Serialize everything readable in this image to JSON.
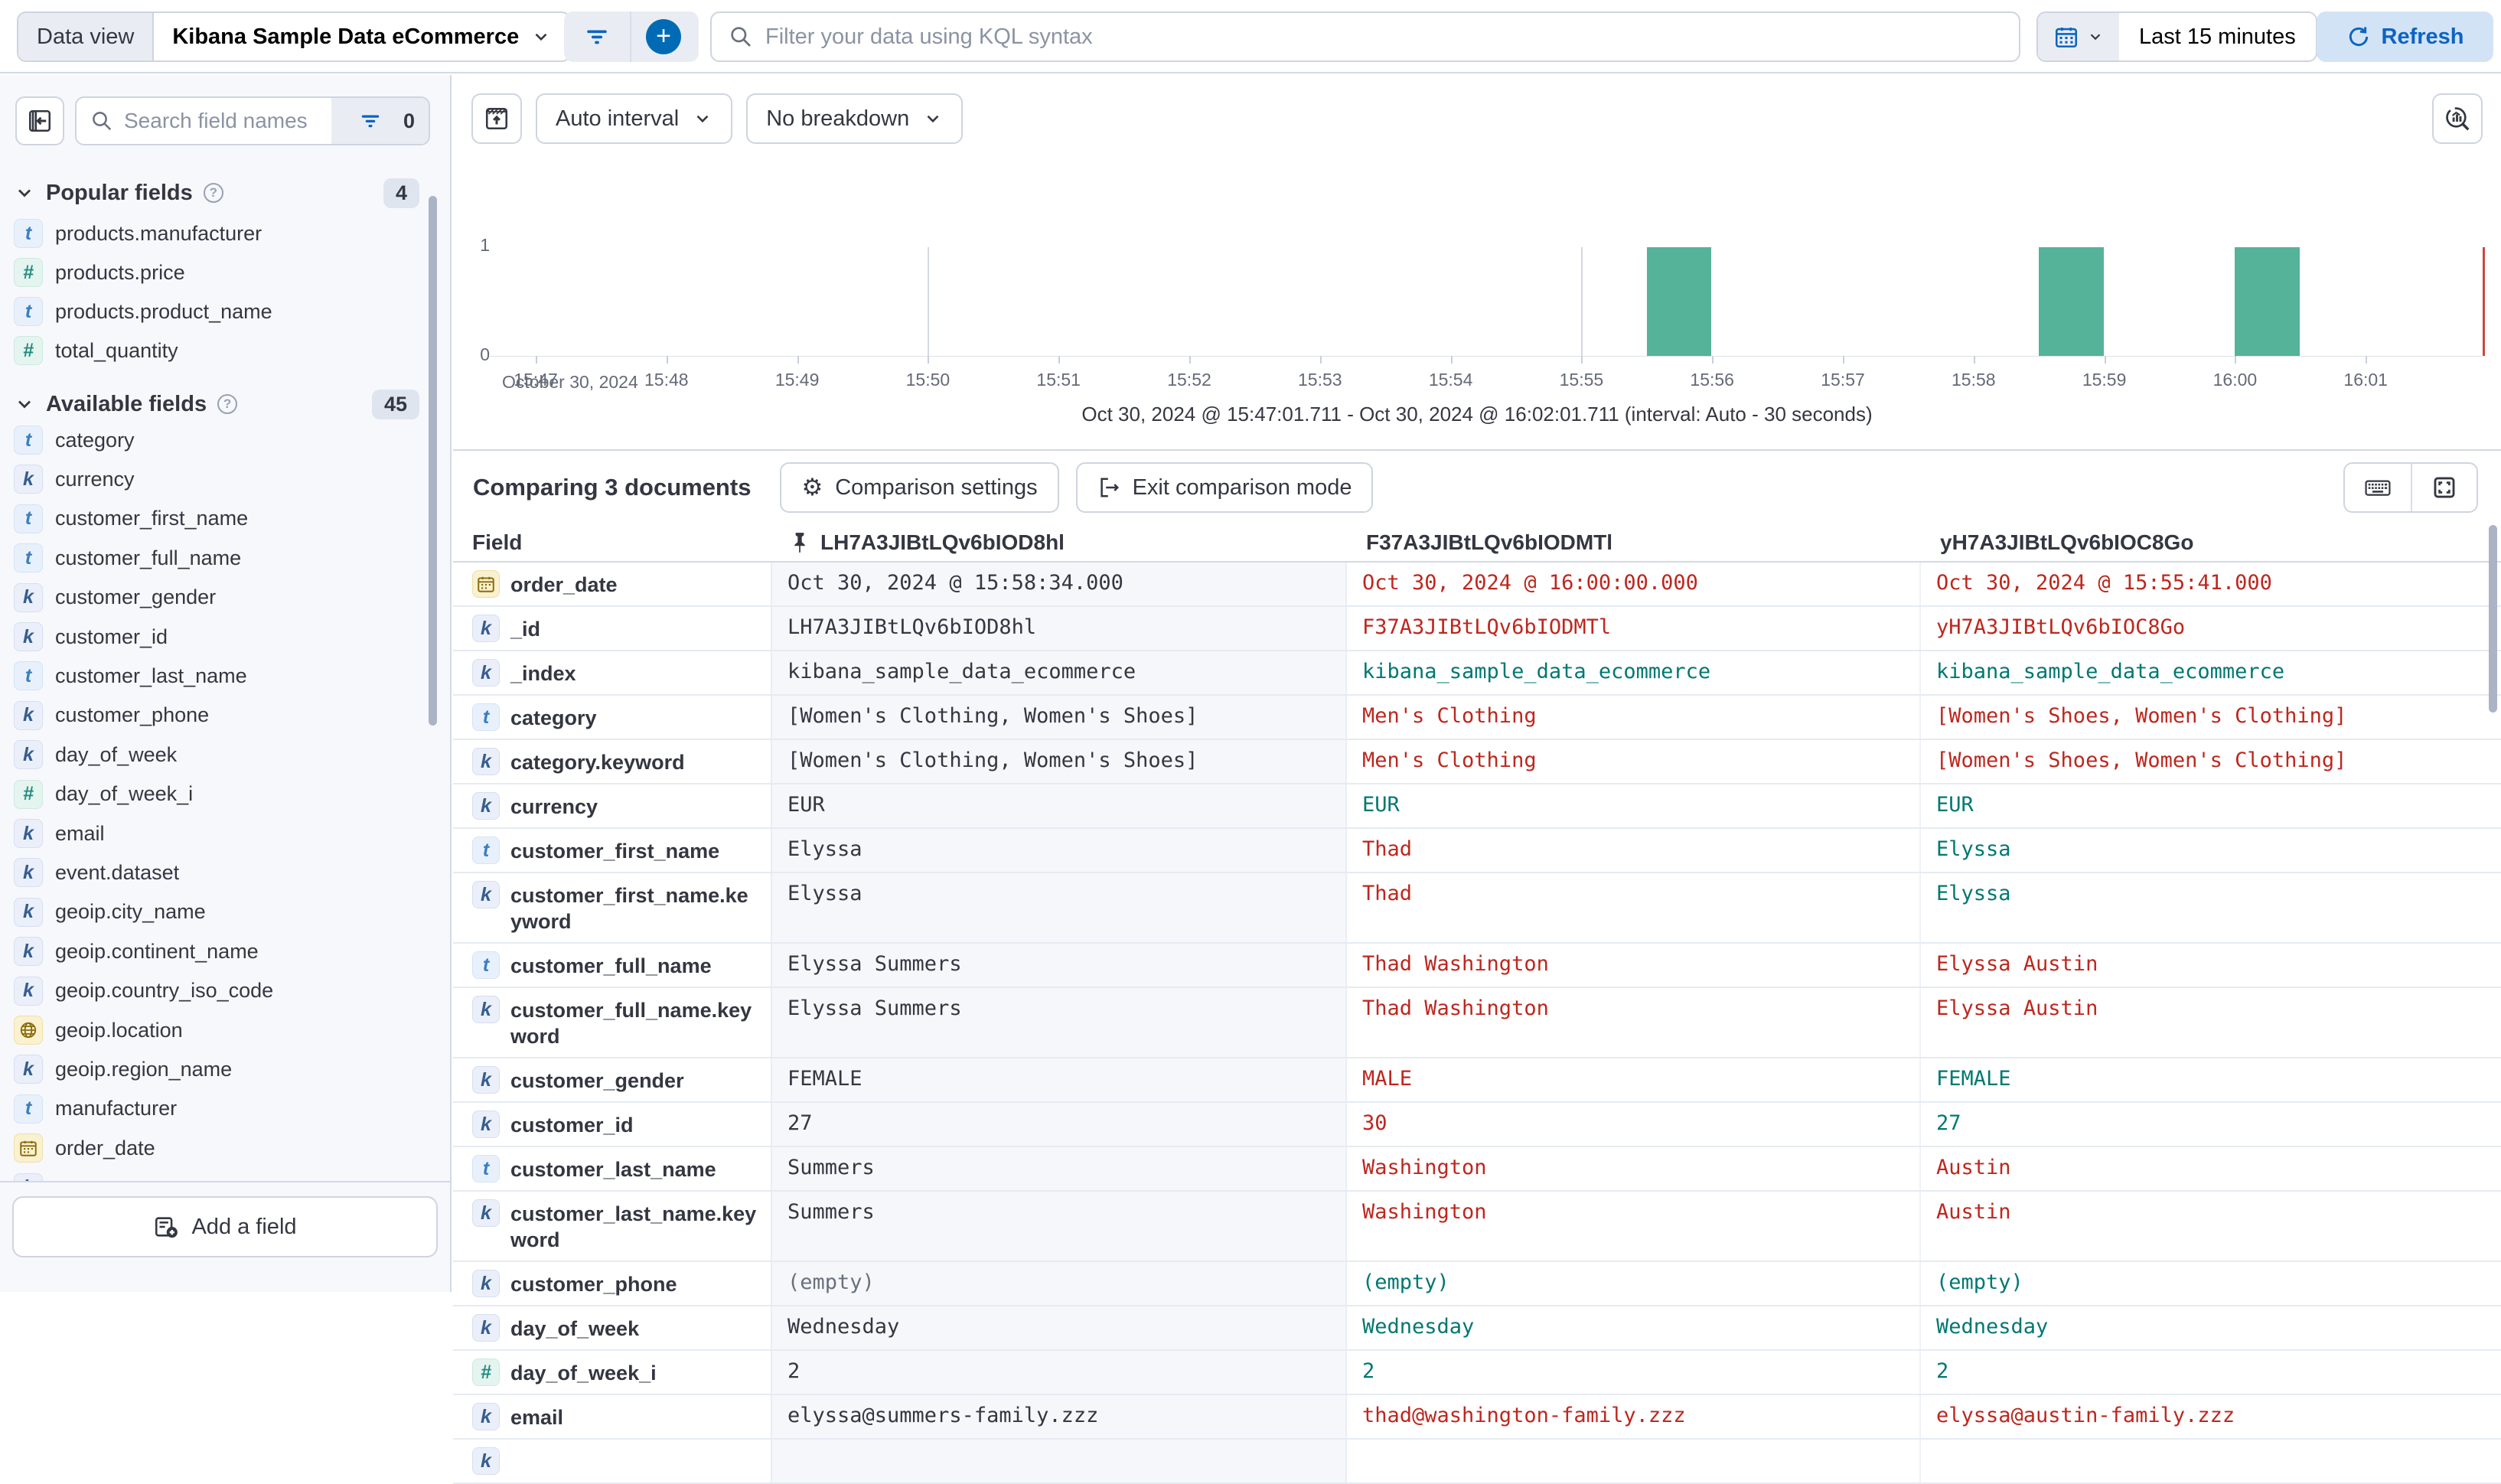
{
  "topbar": {
    "data_view_label": "Data view",
    "data_view_value": "Kibana Sample Data eCommerce",
    "kql_placeholder": "Filter your data using KQL syntax",
    "time_range": "Last 15 minutes",
    "refresh_label": "Refresh"
  },
  "sidebar": {
    "search_placeholder": "Search field names",
    "filter_count": "0",
    "popular_title": "Popular fields",
    "popular_count": "4",
    "available_title": "Available fields",
    "available_count": "45",
    "add_field_label": "Add a field",
    "popular_items": [
      {
        "name": "products.manufacturer",
        "type": "text"
      },
      {
        "name": "products.price",
        "type": "number"
      },
      {
        "name": "products.product_name",
        "type": "text"
      },
      {
        "name": "total_quantity",
        "type": "number"
      }
    ],
    "available_items": [
      {
        "name": "category",
        "type": "text"
      },
      {
        "name": "currency",
        "type": "keyword"
      },
      {
        "name": "customer_first_name",
        "type": "text"
      },
      {
        "name": "customer_full_name",
        "type": "text"
      },
      {
        "name": "customer_gender",
        "type": "keyword"
      },
      {
        "name": "customer_id",
        "type": "keyword"
      },
      {
        "name": "customer_last_name",
        "type": "text"
      },
      {
        "name": "customer_phone",
        "type": "keyword"
      },
      {
        "name": "day_of_week",
        "type": "keyword"
      },
      {
        "name": "day_of_week_i",
        "type": "number"
      },
      {
        "name": "email",
        "type": "keyword"
      },
      {
        "name": "event.dataset",
        "type": "keyword"
      },
      {
        "name": "geoip.city_name",
        "type": "keyword"
      },
      {
        "name": "geoip.continent_name",
        "type": "keyword"
      },
      {
        "name": "geoip.country_iso_code",
        "type": "keyword"
      },
      {
        "name": "geoip.location",
        "type": "geo"
      },
      {
        "name": "geoip.region_name",
        "type": "keyword"
      },
      {
        "name": "manufacturer",
        "type": "text"
      },
      {
        "name": "order_date",
        "type": "date"
      },
      {
        "name": "",
        "type": "keyword",
        "partial": true
      }
    ]
  },
  "chart": {
    "interval_label": "Auto interval",
    "breakdown_label": "No breakdown",
    "x_context": "October 30, 2024",
    "caption": "Oct 30, 2024 @ 15:47:01.711 - Oct 30, 2024 @ 16:02:01.711 (interval: Auto - 30 seconds)"
  },
  "chart_data": {
    "type": "bar",
    "title": "",
    "xlabel": "October 30, 2024",
    "ylabel": "",
    "ylim": [
      0,
      1
    ],
    "y_ticks": [
      "1",
      "0"
    ],
    "x_ticks": [
      "15:47",
      "15:48",
      "15:49",
      "15:50",
      "15:51",
      "15:52",
      "15:53",
      "15:54",
      "15:55",
      "15:56",
      "15:57",
      "15:58",
      "15:59",
      "16:00",
      "16:01"
    ],
    "bar_interval_seconds": 30,
    "bars": [
      {
        "time": "15:55:30",
        "value": 1
      },
      {
        "time": "15:58:30",
        "value": 1
      },
      {
        "time": "16:00:00",
        "value": 1
      }
    ],
    "bar_color": "#54b399",
    "now_marker_color": "#cf453c",
    "grid_minutes": [
      "15:50",
      "15:55",
      "16:00"
    ]
  },
  "comparison": {
    "title": "Comparing 3 documents",
    "settings_label": "Comparison settings",
    "exit_label": "Exit comparison mode"
  },
  "table": {
    "field_header": "Field",
    "pinned_column": "LH7A3JIBtLQv6bIOD8hl",
    "columns": [
      "F37A3JIBtLQv6bIODMTl",
      "yH7A3JIBtLQv6bIOC8Go"
    ],
    "diff_color": "#bd271e",
    "match_color": "#007871",
    "rows": [
      {
        "field": "order_date",
        "type": "date",
        "base": "Oct 30, 2024 @ 15:58:34.000",
        "d1": "Oct 30, 2024 @ 16:00:00.000",
        "s1": "diff",
        "d2": "Oct 30, 2024 @ 15:55:41.000",
        "s2": "diff"
      },
      {
        "field": "_id",
        "type": "keyword",
        "base": "LH7A3JIBtLQv6bIOD8hl",
        "d1": "F37A3JIBtLQv6bIODMTl",
        "s1": "diff",
        "d2": "yH7A3JIBtLQv6bIOC8Go",
        "s2": "diff"
      },
      {
        "field": "_index",
        "type": "keyword",
        "base": "kibana_sample_data_ecommerce",
        "d1": "kibana_sample_data_ecommerce",
        "s1": "match",
        "d2": "kibana_sample_data_ecommerce",
        "s2": "match"
      },
      {
        "field": "category",
        "type": "text",
        "base": "[Women's Clothing, Women's Shoes]",
        "d1": "Men's Clothing",
        "s1": "diff",
        "d2": "[Women's Shoes, Women's Clothing]",
        "s2": "diff"
      },
      {
        "field": "category.keyword",
        "type": "keyword",
        "base": "[Women's Clothing, Women's Shoes]",
        "d1": "Men's Clothing",
        "s1": "diff",
        "d2": "[Women's Shoes, Women's Clothing]",
        "s2": "diff"
      },
      {
        "field": "currency",
        "type": "keyword",
        "base": "EUR",
        "d1": "EUR",
        "s1": "match",
        "d2": "EUR",
        "s2": "match"
      },
      {
        "field": "customer_first_name",
        "type": "text",
        "base": "Elyssa",
        "d1": "Thad",
        "s1": "diff",
        "d2": "Elyssa",
        "s2": "match"
      },
      {
        "field": "customer_first_name.keyword",
        "type": "keyword",
        "base": "Elyssa",
        "d1": "Thad",
        "s1": "diff",
        "d2": "Elyssa",
        "s2": "match"
      },
      {
        "field": "customer_full_name",
        "type": "text",
        "base": "Elyssa Summers",
        "d1": "Thad Washington",
        "s1": "diff",
        "d2": "Elyssa Austin",
        "s2": "diff"
      },
      {
        "field": "customer_full_name.keyword",
        "type": "keyword",
        "base": "Elyssa Summers",
        "d1": "Thad Washington",
        "s1": "diff",
        "d2": "Elyssa Austin",
        "s2": "diff"
      },
      {
        "field": "customer_gender",
        "type": "keyword",
        "base": "FEMALE",
        "d1": "MALE",
        "s1": "diff",
        "d2": "FEMALE",
        "s2": "match"
      },
      {
        "field": "customer_id",
        "type": "keyword",
        "base": "27",
        "d1": "30",
        "s1": "diff",
        "d2": "27",
        "s2": "match"
      },
      {
        "field": "customer_last_name",
        "type": "text",
        "base": "Summers",
        "d1": "Washington",
        "s1": "diff",
        "d2": "Austin",
        "s2": "diff"
      },
      {
        "field": "customer_last_name.keyword",
        "type": "keyword",
        "base": "Summers",
        "d1": "Washington",
        "s1": "diff",
        "d2": "Austin",
        "s2": "diff"
      },
      {
        "field": "customer_phone",
        "type": "keyword",
        "base": "(empty)",
        "base_s": "empty",
        "d1": "(empty)",
        "s1": "match",
        "d2": "(empty)",
        "s2": "match"
      },
      {
        "field": "day_of_week",
        "type": "keyword",
        "base": "Wednesday",
        "d1": "Wednesday",
        "s1": "match",
        "d2": "Wednesday",
        "s2": "match"
      },
      {
        "field": "day_of_week_i",
        "type": "number",
        "base": "2",
        "d1": "2",
        "s1": "match",
        "d2": "2",
        "s2": "match"
      },
      {
        "field": "email",
        "type": "keyword",
        "base": "elyssa@summers-family.zzz",
        "d1": "thad@washington-family.zzz",
        "s1": "diff",
        "d2": "elyssa@austin-family.zzz",
        "s2": "diff"
      },
      {
        "field": "",
        "type": "keyword",
        "base": "",
        "d1": "",
        "s1": "match",
        "d2": "",
        "s2": "match",
        "partial": true
      }
    ]
  }
}
